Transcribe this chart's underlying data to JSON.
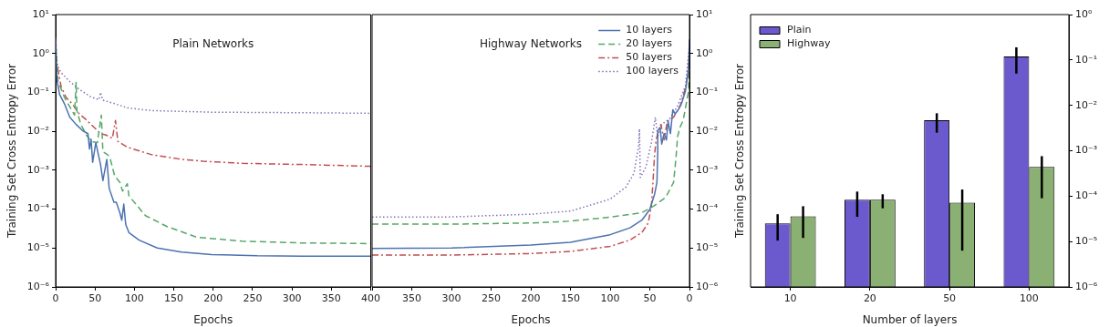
{
  "chart_data": [
    {
      "type": "line",
      "title": "Plain Networks",
      "xlabel": "Epochs",
      "ylabel": "Training Set Cross Entropy Error",
      "log": "y",
      "grid": false,
      "legend": false,
      "xlim": [
        0,
        400
      ],
      "xticks": [
        0,
        50,
        100,
        150,
        200,
        250,
        300,
        350,
        400
      ],
      "ylim": [
        1e-06,
        10
      ],
      "yticks": [
        {
          "value": 1e-06,
          "label": "10⁻⁶"
        },
        {
          "value": 1e-05,
          "label": "10⁻⁵"
        },
        {
          "value": 0.0001,
          "label": "10⁻⁴"
        },
        {
          "value": 0.001,
          "label": "10⁻³"
        },
        {
          "value": 0.01,
          "label": "10⁻²"
        },
        {
          "value": 0.1,
          "label": "10⁻¹"
        },
        {
          "value": 1,
          "label": "10⁰"
        },
        {
          "value": 10,
          "label": "10¹"
        }
      ],
      "series": [
        {
          "color": "#4c72b0",
          "line_style": "solid",
          "x": [
            0,
            1.5,
            5,
            11,
            18,
            26,
            34,
            41,
            43,
            45,
            47,
            51,
            57,
            60,
            65,
            68,
            74,
            77,
            81.5,
            84,
            86.5,
            89,
            93,
            106,
            129,
            160,
            198,
            256,
            313,
            400
          ],
          "values": [
            2.3,
            0.22,
            0.089,
            0.052,
            0.023,
            0.015,
            0.0105,
            0.0087,
            0.0035,
            0.0063,
            0.0016,
            0.0051,
            0.0014,
            0.00054,
            0.0019,
            0.00034,
            0.00015,
            0.00015,
            8.1e-05,
            5.2e-05,
            0.000135,
            4e-05,
            2.5e-05,
            1.6e-05,
            1e-05,
            7.9e-06,
            6.8e-06,
            6.3e-06,
            6.2e-06,
            6.2e-06
          ]
        },
        {
          "color": "#55a868",
          "line_style": "dashed",
          "x": [
            0,
            3,
            11,
            24,
            26,
            27,
            32,
            39,
            45,
            53,
            58,
            60,
            66,
            69,
            75,
            81.5,
            85,
            91,
            93,
            114,
            141,
            179,
            237,
            313,
            400
          ],
          "values": [
            1.6,
            0.19,
            0.076,
            0.026,
            0.18,
            0.034,
            0.015,
            0.008,
            0.0055,
            0.0051,
            0.026,
            0.003,
            0.0025,
            0.0021,
            0.0007,
            0.00049,
            0.00029,
            0.00045,
            0.00022,
            6.8e-05,
            3.6e-05,
            1.9e-05,
            1.5e-05,
            1.35e-05,
            1.3e-05
          ]
        },
        {
          "color": "#c44e52",
          "line_style": "dashdot",
          "x": [
            0,
            3,
            7,
            13,
            22,
            30,
            37.5,
            45,
            57,
            64,
            72,
            76,
            79,
            91,
            122,
            160,
            187,
            237,
            313,
            400
          ],
          "values": [
            0.93,
            0.38,
            0.14,
            0.076,
            0.048,
            0.028,
            0.021,
            0.015,
            0.0087,
            0.008,
            0.0066,
            0.019,
            0.0055,
            0.0039,
            0.0025,
            0.0019,
            0.0017,
            0.0015,
            0.0014,
            0.00126
          ]
        },
        {
          "color": "#8172b2",
          "line_style": "dotted",
          "x": [
            0,
            2,
            7,
            18,
            30,
            45,
            55,
            57,
            60,
            74,
            91,
            122,
            198,
            313,
            400
          ],
          "values": [
            2.5,
            0.5,
            0.32,
            0.19,
            0.12,
            0.076,
            0.065,
            0.1,
            0.063,
            0.052,
            0.04,
            0.034,
            0.031,
            0.03,
            0.029
          ]
        }
      ]
    },
    {
      "type": "line",
      "title": "Highway Networks",
      "xlabel": "Epochs",
      "log": "y",
      "grid": false,
      "legend": "top right",
      "xlim": [
        400,
        0
      ],
      "xticks": [
        {
          "value": 400,
          "label": null
        },
        350,
        300,
        250,
        200,
        150,
        100,
        50,
        0
      ],
      "ylim": [
        1e-06,
        10
      ],
      "yticks": [
        {
          "value": 1e-06,
          "label": "10⁻⁶"
        },
        {
          "value": 1e-05,
          "label": "10⁻⁵"
        },
        {
          "value": 0.0001,
          "label": "10⁻⁴"
        },
        {
          "value": 0.001,
          "label": "10⁻³"
        },
        {
          "value": 0.01,
          "label": "10⁻²"
        },
        {
          "value": 0.1,
          "label": "10⁻¹"
        },
        {
          "value": 1,
          "label": "10⁰"
        },
        {
          "value": 10,
          "label": "10¹"
        }
      ],
      "series": [
        {
          "name": "10 layers",
          "color": "#4c72b0",
          "line_style": "solid",
          "x": [
            400,
            300,
            200,
            150,
            100,
            75,
            60,
            50,
            44,
            41,
            40,
            40,
            37,
            35,
            32,
            29,
            27,
            24,
            21,
            18,
            14,
            10,
            5,
            1,
            0
          ],
          "values": [
            9.8e-06,
            1e-05,
            1.2e-05,
            1.4e-05,
            2.2e-05,
            3.3e-05,
            5.2e-05,
            9.8e-05,
            0.00024,
            0.00049,
            0.003,
            0.0105,
            0.0126,
            0.0047,
            0.0087,
            0.006,
            0.018,
            0.0087,
            0.036,
            0.028,
            0.036,
            0.052,
            0.11,
            0.46,
            2.3
          ]
        },
        {
          "name": "20 layers",
          "color": "#55a868",
          "line_style": "dashed",
          "x": [
            400,
            300,
            200,
            150,
            100,
            60,
            45,
            30,
            20,
            17,
            15,
            12,
            8,
            4,
            1,
            0
          ],
          "values": [
            4.1e-05,
            4.1e-05,
            4.4e-05,
            4.9e-05,
            6.2e-05,
            8.1e-05,
            0.00012,
            0.0002,
            0.00049,
            0.0021,
            0.0072,
            0.0126,
            0.019,
            0.052,
            0.11,
            1.3
          ]
        },
        {
          "name": "50 layers",
          "color": "#c44e52",
          "line_style": "dashdot",
          "x": [
            400,
            300,
            200,
            150,
            100,
            75,
            60,
            52,
            48,
            46,
            44,
            42,
            40,
            36,
            32,
            28,
            20,
            12,
            5,
            1,
            0
          ],
          "values": [
            6.6e-06,
            6.6e-06,
            7.2e-06,
            8.2e-06,
            1.1e-05,
            1.6e-05,
            2.5e-05,
            4.4e-05,
            0.00012,
            0.00049,
            0.0025,
            0.006,
            0.0087,
            0.015,
            0.006,
            0.018,
            0.023,
            0.044,
            0.13,
            0.38,
            1.3
          ]
        },
        {
          "name": "100 layers",
          "color": "#8172b2",
          "line_style": "dotted",
          "x": [
            400,
            300,
            200,
            150,
            100,
            80,
            70,
            64,
            63,
            62,
            55,
            48,
            43,
            40,
            35,
            25,
            15,
            5,
            0
          ],
          "values": [
            6.3e-05,
            6.3e-05,
            7.4e-05,
            8.9e-05,
            0.00018,
            0.00037,
            0.00083,
            0.0043,
            0.0115,
            0.00065,
            0.0012,
            0.0051,
            0.023,
            0.0072,
            0.015,
            0.021,
            0.044,
            0.15,
            1.6
          ]
        }
      ]
    },
    {
      "type": "bar",
      "xlabel": "Number of layers",
      "ylabel": "Training Set Cross Entropy Error",
      "log": "y",
      "grid": false,
      "legend": "top left",
      "categories": [
        "10",
        "20",
        "50",
        "100"
      ],
      "ylim": [
        1e-06,
        1
      ],
      "yticks": [
        {
          "value": 1e-06,
          "label": "10⁻⁶"
        },
        {
          "value": 1e-05,
          "label": "10⁻⁵"
        },
        {
          "value": 0.0001,
          "label": "10⁻⁴"
        },
        {
          "value": 0.001,
          "label": "10⁻³"
        },
        {
          "value": 0.01,
          "label": "10⁻²"
        },
        {
          "value": 0.1,
          "label": "10⁻¹"
        },
        {
          "value": 1,
          "label": "10⁰"
        }
      ],
      "series": [
        {
          "name": "Plain",
          "color": "#6a5acd",
          "values": [
            2.5e-05,
            8.3e-05,
            0.0047,
            0.12
          ],
          "errors": [
            [
              1.05e-05,
              4e-05
            ],
            [
              3.5e-05,
              0.000126
            ],
            [
              0.0025,
              0.0067
            ],
            [
              0.05,
              0.19
            ]
          ]
        },
        {
          "name": "Highway",
          "color": "#8ab173",
          "values": [
            3.6e-05,
            8.3e-05,
            7.2e-05,
            0.00044
          ],
          "errors": [
            [
              1.2e-05,
              6e-05
            ],
            [
              5.4e-05,
              0.00011
            ],
            [
              6.3e-06,
              0.00014
            ],
            [
              9e-05,
              0.00076
            ]
          ]
        }
      ]
    }
  ]
}
